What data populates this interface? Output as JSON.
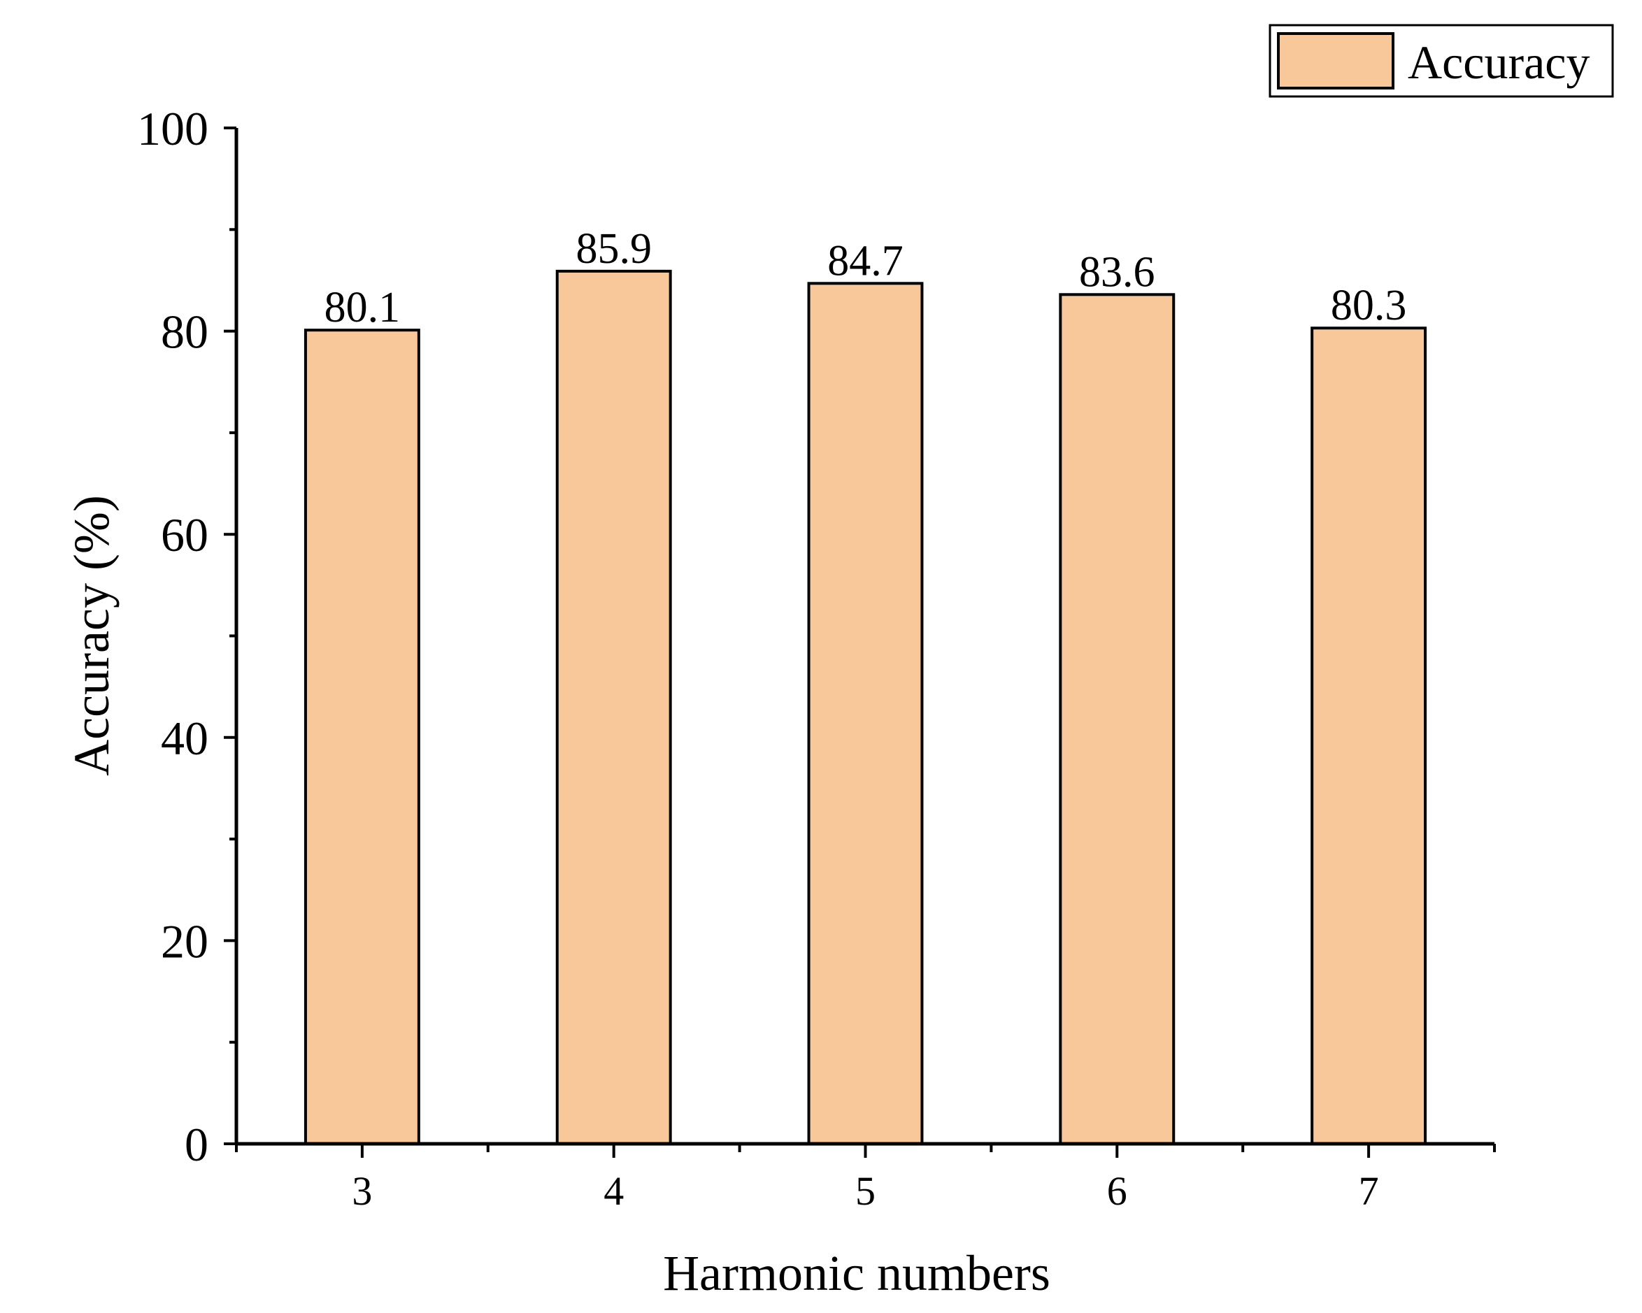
{
  "chart_data": {
    "type": "bar",
    "categories": [
      "3",
      "4",
      "5",
      "6",
      "7"
    ],
    "series": [
      {
        "name": "Accuracy",
        "values": [
          80.1,
          85.9,
          84.7,
          83.6,
          80.3
        ]
      }
    ],
    "value_labels": [
      "80.1",
      "85.9",
      "84.7",
      "83.6",
      "80.3"
    ],
    "xlabel": "Harmonic numbers",
    "ylabel": "Accuracy (%)",
    "ylim": [
      0,
      100
    ],
    "yticks": [
      0,
      20,
      40,
      60,
      80,
      100
    ],
    "y_minor_step": 10,
    "grid": false,
    "legend_position": "top-right",
    "colors": {
      "bar_fill": "#f9c89a",
      "bar_stroke": "#000000",
      "axis": "#000000"
    }
  }
}
